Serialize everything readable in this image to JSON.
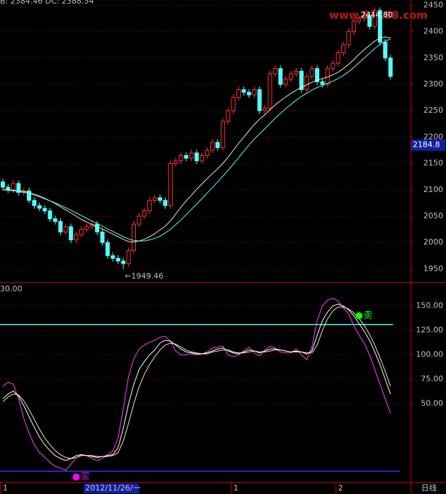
{
  "chart_data": {
    "type": "candlestick",
    "header": "B: 2384.46  DC: 2388.54",
    "watermark": "www.51188.com",
    "period_label": "日线",
    "ylim": [
      1925,
      2460
    ],
    "yticks": [
      1950,
      2000,
      2050,
      2100,
      2150,
      2200,
      2250,
      2300,
      2350,
      2400,
      2450
    ],
    "grid": true,
    "up_color": "#ff3232",
    "down_color": "#54fcfc",
    "open": [
      2115,
      2105,
      2100,
      2112,
      2095,
      2098,
      2080,
      2070,
      2065,
      2060,
      2045,
      2040,
      2020,
      2030,
      2005,
      2015,
      2025,
      2030,
      2035,
      2020,
      2000,
      1975,
      1970,
      1965,
      1960,
      1985,
      2035,
      2050,
      2060,
      2080,
      2085,
      2080,
      2070,
      2150,
      2155,
      2165,
      2160,
      2170,
      2155,
      2165,
      2175,
      2190,
      2180,
      2230,
      2250,
      2275,
      2290,
      2285,
      2280,
      2290,
      2250,
      2255,
      2320,
      2330,
      2300,
      2310,
      2320,
      2325,
      2290,
      2315,
      2330,
      2305,
      2300,
      2330,
      2340,
      2360,
      2375,
      2400,
      2420,
      2425,
      2430,
      2410,
      2440,
      2380,
      2350
    ],
    "high": [
      2121,
      2111,
      2118,
      2118,
      2104,
      2104,
      2086,
      2076,
      2071,
      2066,
      2051,
      2046,
      2036,
      2036,
      2021,
      2031,
      2036,
      2041,
      2041,
      2026,
      2006,
      1981,
      1976,
      1971,
      1991,
      2041,
      2056,
      2066,
      2086,
      2091,
      2091,
      2086,
      2156,
      2161,
      2171,
      2171,
      2176,
      2176,
      2171,
      2181,
      2196,
      2196,
      2236,
      2256,
      2281,
      2296,
      2296,
      2291,
      2296,
      2296,
      2261,
      2326,
      2336,
      2336,
      2316,
      2326,
      2331,
      2331,
      2321,
      2336,
      2336,
      2311,
      2336,
      2346,
      2366,
      2381,
      2406,
      2426,
      2431,
      2436,
      2436,
      2444.8,
      2446,
      2386,
      2356
    ],
    "low": [
      2099,
      2094,
      2094,
      2089,
      2089,
      2074,
      2064,
      2059,
      2054,
      2039,
      2034,
      2014,
      2014,
      1999,
      1999,
      2009,
      2019,
      2024,
      2014,
      1994,
      1969,
      1964,
      1959,
      1949.46,
      1954,
      1979,
      2029,
      2044,
      2054,
      2074,
      2074,
      2064,
      2064,
      2144,
      2149,
      2154,
      2154,
      2149,
      2149,
      2159,
      2169,
      2174,
      2174,
      2224,
      2244,
      2269,
      2279,
      2274,
      2274,
      2244,
      2244,
      2249,
      2314,
      2294,
      2294,
      2304,
      2314,
      2284,
      2284,
      2309,
      2299,
      2294,
      2294,
      2324,
      2334,
      2354,
      2369,
      2394,
      2414,
      2419,
      2404,
      2404,
      2374,
      2344,
      2309
    ],
    "close": [
      2105,
      2100,
      2112,
      2095,
      2098,
      2080,
      2070,
      2065,
      2060,
      2045,
      2040,
      2020,
      2030,
      2005,
      2015,
      2025,
      2030,
      2035,
      2020,
      2000,
      1975,
      1970,
      1965,
      1960,
      1985,
      2035,
      2050,
      2060,
      2080,
      2085,
      2080,
      2070,
      2150,
      2155,
      2165,
      2160,
      2170,
      2155,
      2165,
      2175,
      2190,
      2180,
      2230,
      2250,
      2275,
      2290,
      2285,
      2280,
      2290,
      2250,
      2255,
      2320,
      2330,
      2300,
      2310,
      2320,
      2325,
      2290,
      2315,
      2330,
      2305,
      2300,
      2330,
      2340,
      2360,
      2375,
      2400,
      2420,
      2425,
      2430,
      2410,
      2440,
      2380,
      2350,
      2315
    ],
    "series": [
      {
        "color": "#f0f0a0",
        "values": [
          2100,
          2100,
          2099,
          2098,
          2097,
          2095,
          2092,
          2088,
          2084,
          2079,
          2074,
          2068,
          2062,
          2056,
          2050,
          2044,
          2039,
          2034,
          2030,
          2026,
          2021,
          2016,
          2011,
          2006,
          2002,
          2001,
          2003,
          2006,
          2011,
          2017,
          2024,
          2031,
          2041,
          2054,
          2067,
          2079,
          2090,
          2101,
          2111,
          2121,
          2131,
          2140,
          2150,
          2162,
          2175,
          2188,
          2200,
          2212,
          2224,
          2234,
          2242,
          2252,
          2261,
          2269,
          2276,
          2283,
          2289,
          2294,
          2299,
          2304,
          2308,
          2311,
          2314,
          2318,
          2323,
          2330,
          2338,
          2347,
          2357,
          2366,
          2374,
          2382,
          2388,
          2390,
          2388
        ]
      },
      {
        "color": "#54fcfc",
        "values": [
          2100,
          2099,
          2098,
          2097,
          2095,
          2093,
          2090,
          2087,
          2083,
          2079,
          2075,
          2071,
          2066,
          2061,
          2056,
          2051,
          2046,
          2041,
          2036,
          2031,
          2026,
          2021,
          2016,
          2011,
          2007,
          2004,
          2003,
          2003,
          2005,
          2008,
          2012,
          2018,
          2025,
          2034,
          2043,
          2053,
          2063,
          2073,
          2083,
          2094,
          2104,
          2115,
          2126,
          2137,
          2149,
          2161,
          2173,
          2185,
          2196,
          2206,
          2216,
          2226,
          2236,
          2245,
          2254,
          2262,
          2270,
          2277,
          2283,
          2289,
          2294,
          2298,
          2302,
          2306,
          2311,
          2317,
          2324,
          2332,
          2341,
          2350,
          2359,
          2368,
          2376,
          2382,
          2386
        ]
      }
    ],
    "annotations": [
      {
        "index": 23,
        "value": 1949.46,
        "label": "←1949.46"
      },
      {
        "index": 71,
        "value": 2444.8,
        "label": "2444.80"
      }
    ],
    "current_price": {
      "value": 2184.8
    },
    "date_labels": [
      {
        "index": 0,
        "label": "1"
      },
      {
        "index": 21,
        "label": "2012/11/26/一"
      },
      {
        "index": 44,
        "label": "1"
      },
      {
        "index": 64,
        "label": "2"
      }
    ],
    "indicator": {
      "header": "30.00",
      "ylim": [
        -30,
        173
      ],
      "yticks": [
        {
          "value": 50,
          "label": "50.00"
        },
        {
          "value": 75,
          "label": "75.00"
        },
        {
          "value": 100,
          "label": "100.00"
        },
        {
          "value": 125,
          "label": "125.00"
        },
        {
          "value": 150,
          "label": "150.00"
        }
      ],
      "series": [
        {
          "color": "#ffffff",
          "values": [
            55,
            60,
            63,
            58,
            48,
            37,
            26,
            16,
            8,
            2,
            -3,
            -6,
            -8,
            -6,
            -3,
            -2,
            -3,
            -4,
            -5,
            -4,
            -3,
            -2,
            5,
            25,
            50,
            70,
            85,
            93,
            100,
            105,
            112,
            115,
            114,
            110,
            106,
            103,
            102,
            101,
            101,
            102,
            104,
            106,
            107,
            104,
            102,
            101,
            103,
            105,
            104,
            102,
            104,
            106,
            106,
            105,
            104,
            103,
            104,
            103,
            101,
            104,
            120,
            135,
            144,
            150,
            152,
            150,
            146,
            140,
            132,
            124,
            115,
            103,
            90,
            75,
            60
          ]
        },
        {
          "color": "#f0f0a0",
          "values": [
            52,
            57,
            60,
            59,
            53,
            44,
            34,
            24,
            15,
            8,
            2,
            -2,
            -5,
            -6,
            -5,
            -3,
            -3,
            -3,
            -4,
            -4,
            -4,
            -3,
            0,
            12,
            30,
            50,
            67,
            80,
            90,
            98,
            105,
            110,
            112,
            111,
            108,
            105,
            103,
            102,
            101,
            101,
            103,
            104,
            105,
            105,
            103,
            102,
            102,
            103,
            104,
            103,
            103,
            104,
            105,
            105,
            104,
            103,
            103,
            103,
            102,
            102,
            110,
            125,
            137,
            145,
            149,
            149,
            147,
            143,
            137,
            130,
            121,
            110,
            97,
            83,
            68
          ]
        },
        {
          "color": "#ff40ff",
          "values": [
            68,
            72,
            70,
            55,
            35,
            20,
            8,
            0,
            -5,
            -10,
            -14,
            -16,
            -18,
            -12,
            -5,
            -2,
            -3,
            -6,
            -8,
            -6,
            -2,
            2,
            15,
            45,
            78,
            96,
            106,
            110,
            113,
            115,
            118,
            119,
            114,
            104,
            100,
            100,
            101,
            100,
            101,
            103,
            107,
            108,
            109,
            100,
            98,
            100,
            104,
            108,
            102,
            99,
            105,
            109,
            107,
            103,
            102,
            102,
            106,
            100,
            95,
            108,
            135,
            150,
            156,
            158,
            155,
            148,
            142,
            130,
            120,
            112,
            100,
            85,
            70,
            55,
            40
          ]
        }
      ],
      "ref_lines": [
        {
          "value": 131,
          "color": "#54fcfc"
        },
        {
          "value": -19,
          "color": "#3030ff"
        }
      ],
      "signals": [
        {
          "index": 14,
          "value": -25,
          "label": "买",
          "color": "#ff00ff"
        },
        {
          "index": 68,
          "value": 140,
          "label": "卖",
          "color": "#00ff00"
        }
      ]
    }
  }
}
